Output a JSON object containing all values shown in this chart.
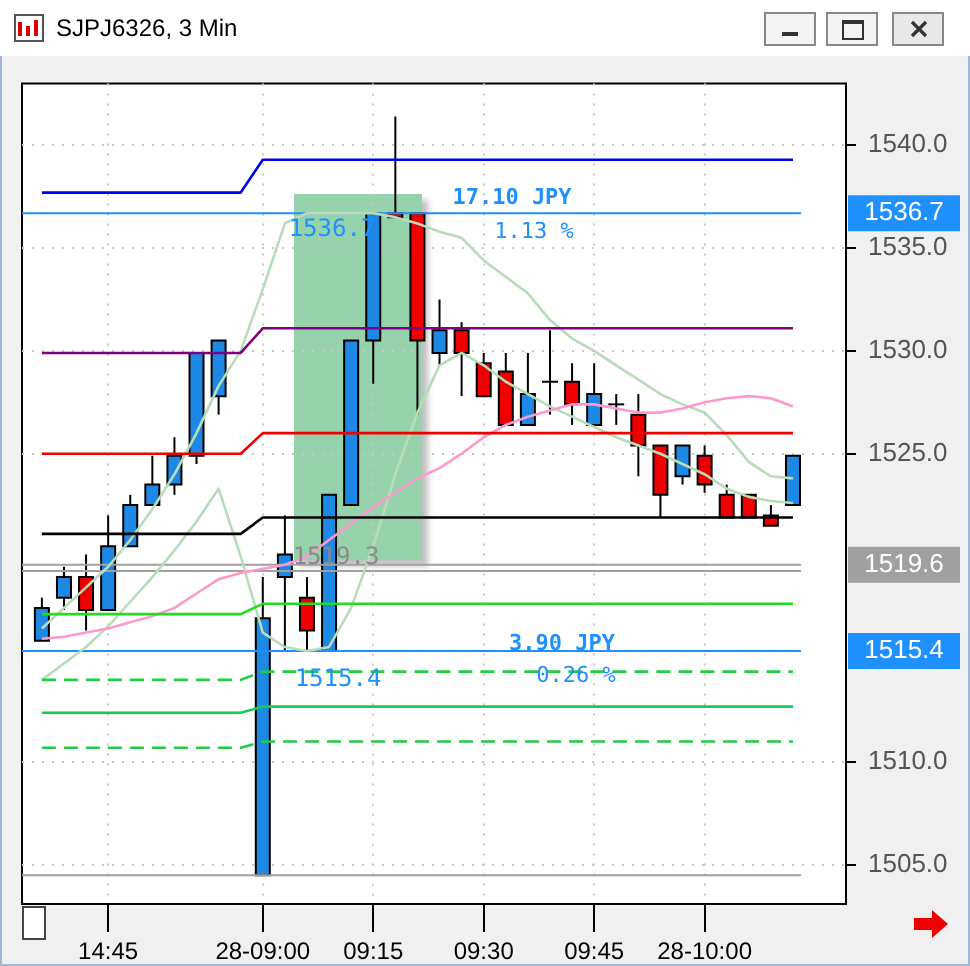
{
  "chart_data": {
    "type": "candlestick",
    "title": "SJPJ6326, 3 Min",
    "categories": [
      null,
      null,
      null,
      "14:45",
      null,
      null,
      null,
      null,
      null,
      null,
      "28-09:00",
      null,
      null,
      null,
      null,
      "09:15",
      null,
      null,
      null,
      null,
      "09:30",
      null,
      null,
      null,
      null,
      "09:45",
      null,
      null,
      null,
      null,
      "28-10:00",
      null,
      null,
      null,
      null
    ],
    "ohlc": [
      [
        1515.9,
        1518.0,
        1515.9,
        1517.5
      ],
      [
        1518.0,
        1519.5,
        1517.4,
        1519.0
      ],
      [
        1519.0,
        1520.1,
        1516.4,
        1517.4
      ],
      [
        1517.4,
        1522.0,
        1517.4,
        1520.5
      ],
      [
        1520.5,
        1523.0,
        1520.5,
        1522.5
      ],
      [
        1522.5,
        1524.9,
        1522.5,
        1523.5
      ],
      [
        1523.5,
        1525.8,
        1523.0,
        1524.9
      ],
      [
        1524.9,
        1529.9,
        1524.5,
        1529.9
      ],
      [
        1527.8,
        1530.5,
        1526.9,
        1530.5
      ],
      null,
      [
        1504.5,
        1519.0,
        1504.5,
        1517.0
      ],
      [
        1519.0,
        1522.0,
        1515.4,
        1520.1
      ],
      [
        1518.0,
        1519.0,
        1515.4,
        1516.4
      ],
      [
        1515.4,
        1523.0,
        1515.4,
        1523.0
      ],
      [
        1522.5,
        1530.5,
        1522.5,
        1530.5
      ],
      [
        1530.5,
        1536.7,
        1528.4,
        1536.7
      ],
      [
        1536.7,
        1541.4,
        1536.5,
        1536.5
      ],
      [
        1536.7,
        1536.7,
        1526.9,
        1530.5
      ],
      [
        1529.9,
        1532.5,
        1529.3,
        1531.0
      ],
      [
        1531.0,
        1531.4,
        1527.8,
        1529.9
      ],
      [
        1529.4,
        1529.9,
        1527.8,
        1527.8
      ],
      [
        1529.0,
        1529.9,
        1526.4,
        1526.4
      ],
      [
        1526.4,
        1529.9,
        1526.4,
        1527.9
      ],
      [
        1528.5,
        1531.0,
        1526.9,
        1528.5
      ],
      [
        1528.5,
        1529.4,
        1526.4,
        1527.4
      ],
      [
        1526.4,
        1529.4,
        1526.4,
        1527.9
      ],
      [
        1527.4,
        1527.9,
        1526.4,
        1527.4
      ],
      [
        1526.9,
        1527.9,
        1523.9,
        1525.4
      ],
      [
        1525.4,
        1525.4,
        1521.9,
        1523.0
      ],
      [
        1523.9,
        1525.4,
        1523.5,
        1525.4
      ],
      [
        1524.9,
        1525.4,
        1523.1,
        1523.5
      ],
      [
        1523.0,
        1523.5,
        1521.9,
        1521.9
      ],
      [
        1523.0,
        1523.0,
        1521.9,
        1521.9
      ],
      [
        1522.0,
        1522.5,
        1521.5,
        1521.5
      ],
      [
        1522.5,
        1524.9,
        1522.5,
        1524.9
      ]
    ],
    "colors": [
      "#1e88e5",
      "#1e88e5",
      "#ee0000",
      "#1e88e5",
      "#1e88e5",
      "#1e88e5",
      "#1e88e5",
      "#1e88e5",
      "#1e88e5",
      null,
      "#1e88e5",
      "#1e88e5",
      "#ee0000",
      "#1e88e5",
      "#1e88e5",
      "#1e88e5",
      "#ee0000",
      "#ee0000",
      "#1e88e5",
      "#ee0000",
      "#ee0000",
      "#ee0000",
      "#1e88e5",
      "#000000",
      "#ee0000",
      "#1e88e5",
      "#000000",
      "#ee0000",
      "#ee0000",
      "#1e88e5",
      "#ee0000",
      "#ee0000",
      "#ee0000",
      "#ee0000",
      "#1e88e5"
    ],
    "series": [
      {
        "type": "line",
        "color": "#0000ee",
        "values": [
          1537.7,
          1537.7,
          1537.7,
          1537.7,
          1537.7,
          1537.7,
          1537.7,
          1537.7,
          1537.7,
          1537.7,
          1539.3,
          1539.3,
          1539.3,
          1539.3,
          1539.3,
          1539.3,
          1539.3,
          1539.3,
          1539.3,
          1539.3,
          1539.3,
          1539.3,
          1539.3,
          1539.3,
          1539.3,
          1539.3,
          1539.3,
          1539.3,
          1539.3,
          1539.3,
          1539.3,
          1539.3,
          1539.3,
          1539.3,
          1539.3
        ]
      },
      {
        "type": "line",
        "color": "#800080",
        "values": [
          1529.9,
          1529.9,
          1529.9,
          1529.9,
          1529.9,
          1529.9,
          1529.9,
          1529.9,
          1529.9,
          1529.9,
          1531.1,
          1531.1,
          1531.1,
          1531.1,
          1531.1,
          1531.1,
          1531.1,
          1531.1,
          1531.1,
          1531.1,
          1531.1,
          1531.1,
          1531.1,
          1531.1,
          1531.1,
          1531.1,
          1531.1,
          1531.1,
          1531.1,
          1531.1,
          1531.1,
          1531.1,
          1531.1,
          1531.1,
          1531.1
        ]
      },
      {
        "type": "line",
        "color": "#ee0000",
        "values": [
          1525.0,
          1525.0,
          1525.0,
          1525.0,
          1525.0,
          1525.0,
          1525.0,
          1525.0,
          1525.0,
          1525.0,
          1526.0,
          1526.0,
          1526.0,
          1526.0,
          1526.0,
          1526.0,
          1526.0,
          1526.0,
          1526.0,
          1526.0,
          1526.0,
          1526.0,
          1526.0,
          1526.0,
          1526.0,
          1526.0,
          1526.0,
          1526.0,
          1526.0,
          1526.0,
          1526.0,
          1526.0,
          1526.0,
          1526.0,
          1526.0
        ]
      },
      {
        "type": "line",
        "color": "#000000",
        "values": [
          1521.1,
          1521.1,
          1521.1,
          1521.1,
          1521.1,
          1521.1,
          1521.1,
          1521.1,
          1521.1,
          1521.1,
          1521.9,
          1521.9,
          1521.9,
          1521.9,
          1521.9,
          1521.9,
          1521.9,
          1521.9,
          1521.9,
          1521.9,
          1521.9,
          1521.9,
          1521.9,
          1521.9,
          1521.9,
          1521.9,
          1521.9,
          1521.9,
          1521.9,
          1521.9,
          1521.9,
          1521.9,
          1521.9,
          1521.9,
          1521.9
        ]
      },
      {
        "type": "line",
        "color": "#22dd22",
        "values": [
          1517.2,
          1517.2,
          1517.2,
          1517.2,
          1517.2,
          1517.2,
          1517.2,
          1517.2,
          1517.2,
          1517.2,
          1517.7,
          1517.7,
          1517.7,
          1517.7,
          1517.7,
          1517.7,
          1517.7,
          1517.7,
          1517.7,
          1517.7,
          1517.7,
          1517.7,
          1517.7,
          1517.7,
          1517.7,
          1517.7,
          1517.7,
          1517.7,
          1517.7,
          1517.7,
          1517.7,
          1517.7,
          1517.7,
          1517.7,
          1517.7
        ]
      },
      {
        "type": "line",
        "color": "#22cc44",
        "line_style": "dashed",
        "values": [
          1514.0,
          1514.0,
          1514.0,
          1514.0,
          1514.0,
          1514.0,
          1514.0,
          1514.0,
          1514.0,
          1514.0,
          1514.4,
          1514.4,
          1514.4,
          1514.4,
          1514.4,
          1514.4,
          1514.4,
          1514.4,
          1514.4,
          1514.4,
          1514.4,
          1514.4,
          1514.4,
          1514.4,
          1514.4,
          1514.4,
          1514.4,
          1514.4,
          1514.4,
          1514.4,
          1514.4,
          1514.4,
          1514.4,
          1514.4,
          1514.4
        ]
      },
      {
        "type": "line",
        "color": "#11cc55",
        "values": [
          1512.4,
          1512.4,
          1512.4,
          1512.4,
          1512.4,
          1512.4,
          1512.4,
          1512.4,
          1512.4,
          1512.4,
          1512.7,
          1512.7,
          1512.7,
          1512.7,
          1512.7,
          1512.7,
          1512.7,
          1512.7,
          1512.7,
          1512.7,
          1512.7,
          1512.7,
          1512.7,
          1512.7,
          1512.7,
          1512.7,
          1512.7,
          1512.7,
          1512.7,
          1512.7,
          1512.7,
          1512.7,
          1512.7,
          1512.7,
          1512.7
        ]
      },
      {
        "type": "line",
        "color": "#22cc44",
        "line_style": "dashed",
        "values": [
          1510.7,
          1510.7,
          1510.7,
          1510.7,
          1510.7,
          1510.7,
          1510.7,
          1510.7,
          1510.7,
          1510.7,
          1511.0,
          1511.0,
          1511.0,
          1511.0,
          1511.0,
          1511.0,
          1511.0,
          1511.0,
          1511.0,
          1511.0,
          1511.0,
          1511.0,
          1511.0,
          1511.0,
          1511.0,
          1511.0,
          1511.0,
          1511.0,
          1511.0,
          1511.0,
          1511.0,
          1511.0,
          1511.0,
          1511.0,
          1511.0
        ]
      },
      {
        "type": "line",
        "color": "#ff99cc",
        "values": [
          1516.0,
          1516.1,
          1516.3,
          1516.5,
          1516.8,
          1517.1,
          1517.5,
          1518.2,
          1518.9,
          1519.2,
          1519.4,
          1519.6,
          1520.0,
          1520.8,
          1521.6,
          1522.4,
          1523.1,
          1523.8,
          1524.3,
          1525.0,
          1525.8,
          1526.4,
          1526.8,
          1527.1,
          1527.4,
          1527.4,
          1527.2,
          1527.0,
          1527.0,
          1527.2,
          1527.5,
          1527.7,
          1527.8,
          1527.7,
          1527.3
        ]
      },
      {
        "type": "line",
        "color": "#b8dcb8",
        "values": [
          1516.5,
          1517.5,
          1518.5,
          1519.5,
          1520.8,
          1522.3,
          1524.0,
          1526.0,
          1528.3,
          1530.0,
          1533.0,
          1536.2,
          1536.7,
          1536.7,
          1536.7,
          1536.7,
          1536.5,
          1536.2,
          1535.8,
          1535.5,
          1534.4,
          1533.6,
          1532.8,
          1531.5,
          1530.6,
          1530.0,
          1529.3,
          1528.6,
          1527.9,
          1527.4,
          1527.0,
          1525.9,
          1524.6,
          1523.9,
          1523.8
        ]
      },
      {
        "type": "line",
        "color": "#b8dcb8",
        "values": [
          1514.0,
          1514.8,
          1515.6,
          1516.6,
          1517.8,
          1519.0,
          1520.3,
          1521.7,
          1523.3,
          1520.0,
          1516.3,
          1515.6,
          1515.4,
          1515.6,
          1517.5,
          1520.5,
          1524.0,
          1527.0,
          1529.3,
          1529.9,
          1529.3,
          1528.5,
          1527.9,
          1527.3,
          1526.8,
          1526.3,
          1525.8,
          1525.4,
          1525.0,
          1524.5,
          1524.0,
          1523.3,
          1522.9,
          1522.7,
          1522.6
        ]
      }
    ],
    "ylim": [
      1503.1,
      1543.0
    ],
    "yticks": [
      {
        "value": 1505,
        "label": "1505.0"
      },
      {
        "value": 1510,
        "label": "1510.0"
      },
      {
        "value": 1525,
        "label": "1525.0"
      },
      {
        "value": 1530,
        "label": "1530.0"
      },
      {
        "value": 1535,
        "label": "1535.0"
      },
      {
        "value": 1540,
        "label": "1540.0"
      }
    ],
    "grid": true,
    "legend": false,
    "ref_lines": [
      {
        "axis": "y",
        "value": 1536.7,
        "label": "1536.7",
        "color": "#1e90ff"
      },
      {
        "axis": "y",
        "value": 1519.6,
        "label": "1519.6",
        "color": "#a0a0a0"
      },
      {
        "axis": "y",
        "value": 1519.3,
        "label": null,
        "color": "#a0a0a0"
      },
      {
        "axis": "y",
        "value": 1515.4,
        "label": "1515.4",
        "color": "#1e90ff"
      },
      {
        "axis": "y",
        "value": 1504.5,
        "label": null,
        "color": "#a0a0a0"
      }
    ],
    "annotations": [
      "17.10 JPY",
      "1.13 %",
      "3.90 JPY",
      "0.26 %",
      "1536.7",
      "1519.3",
      "1515.4"
    ]
  }
}
